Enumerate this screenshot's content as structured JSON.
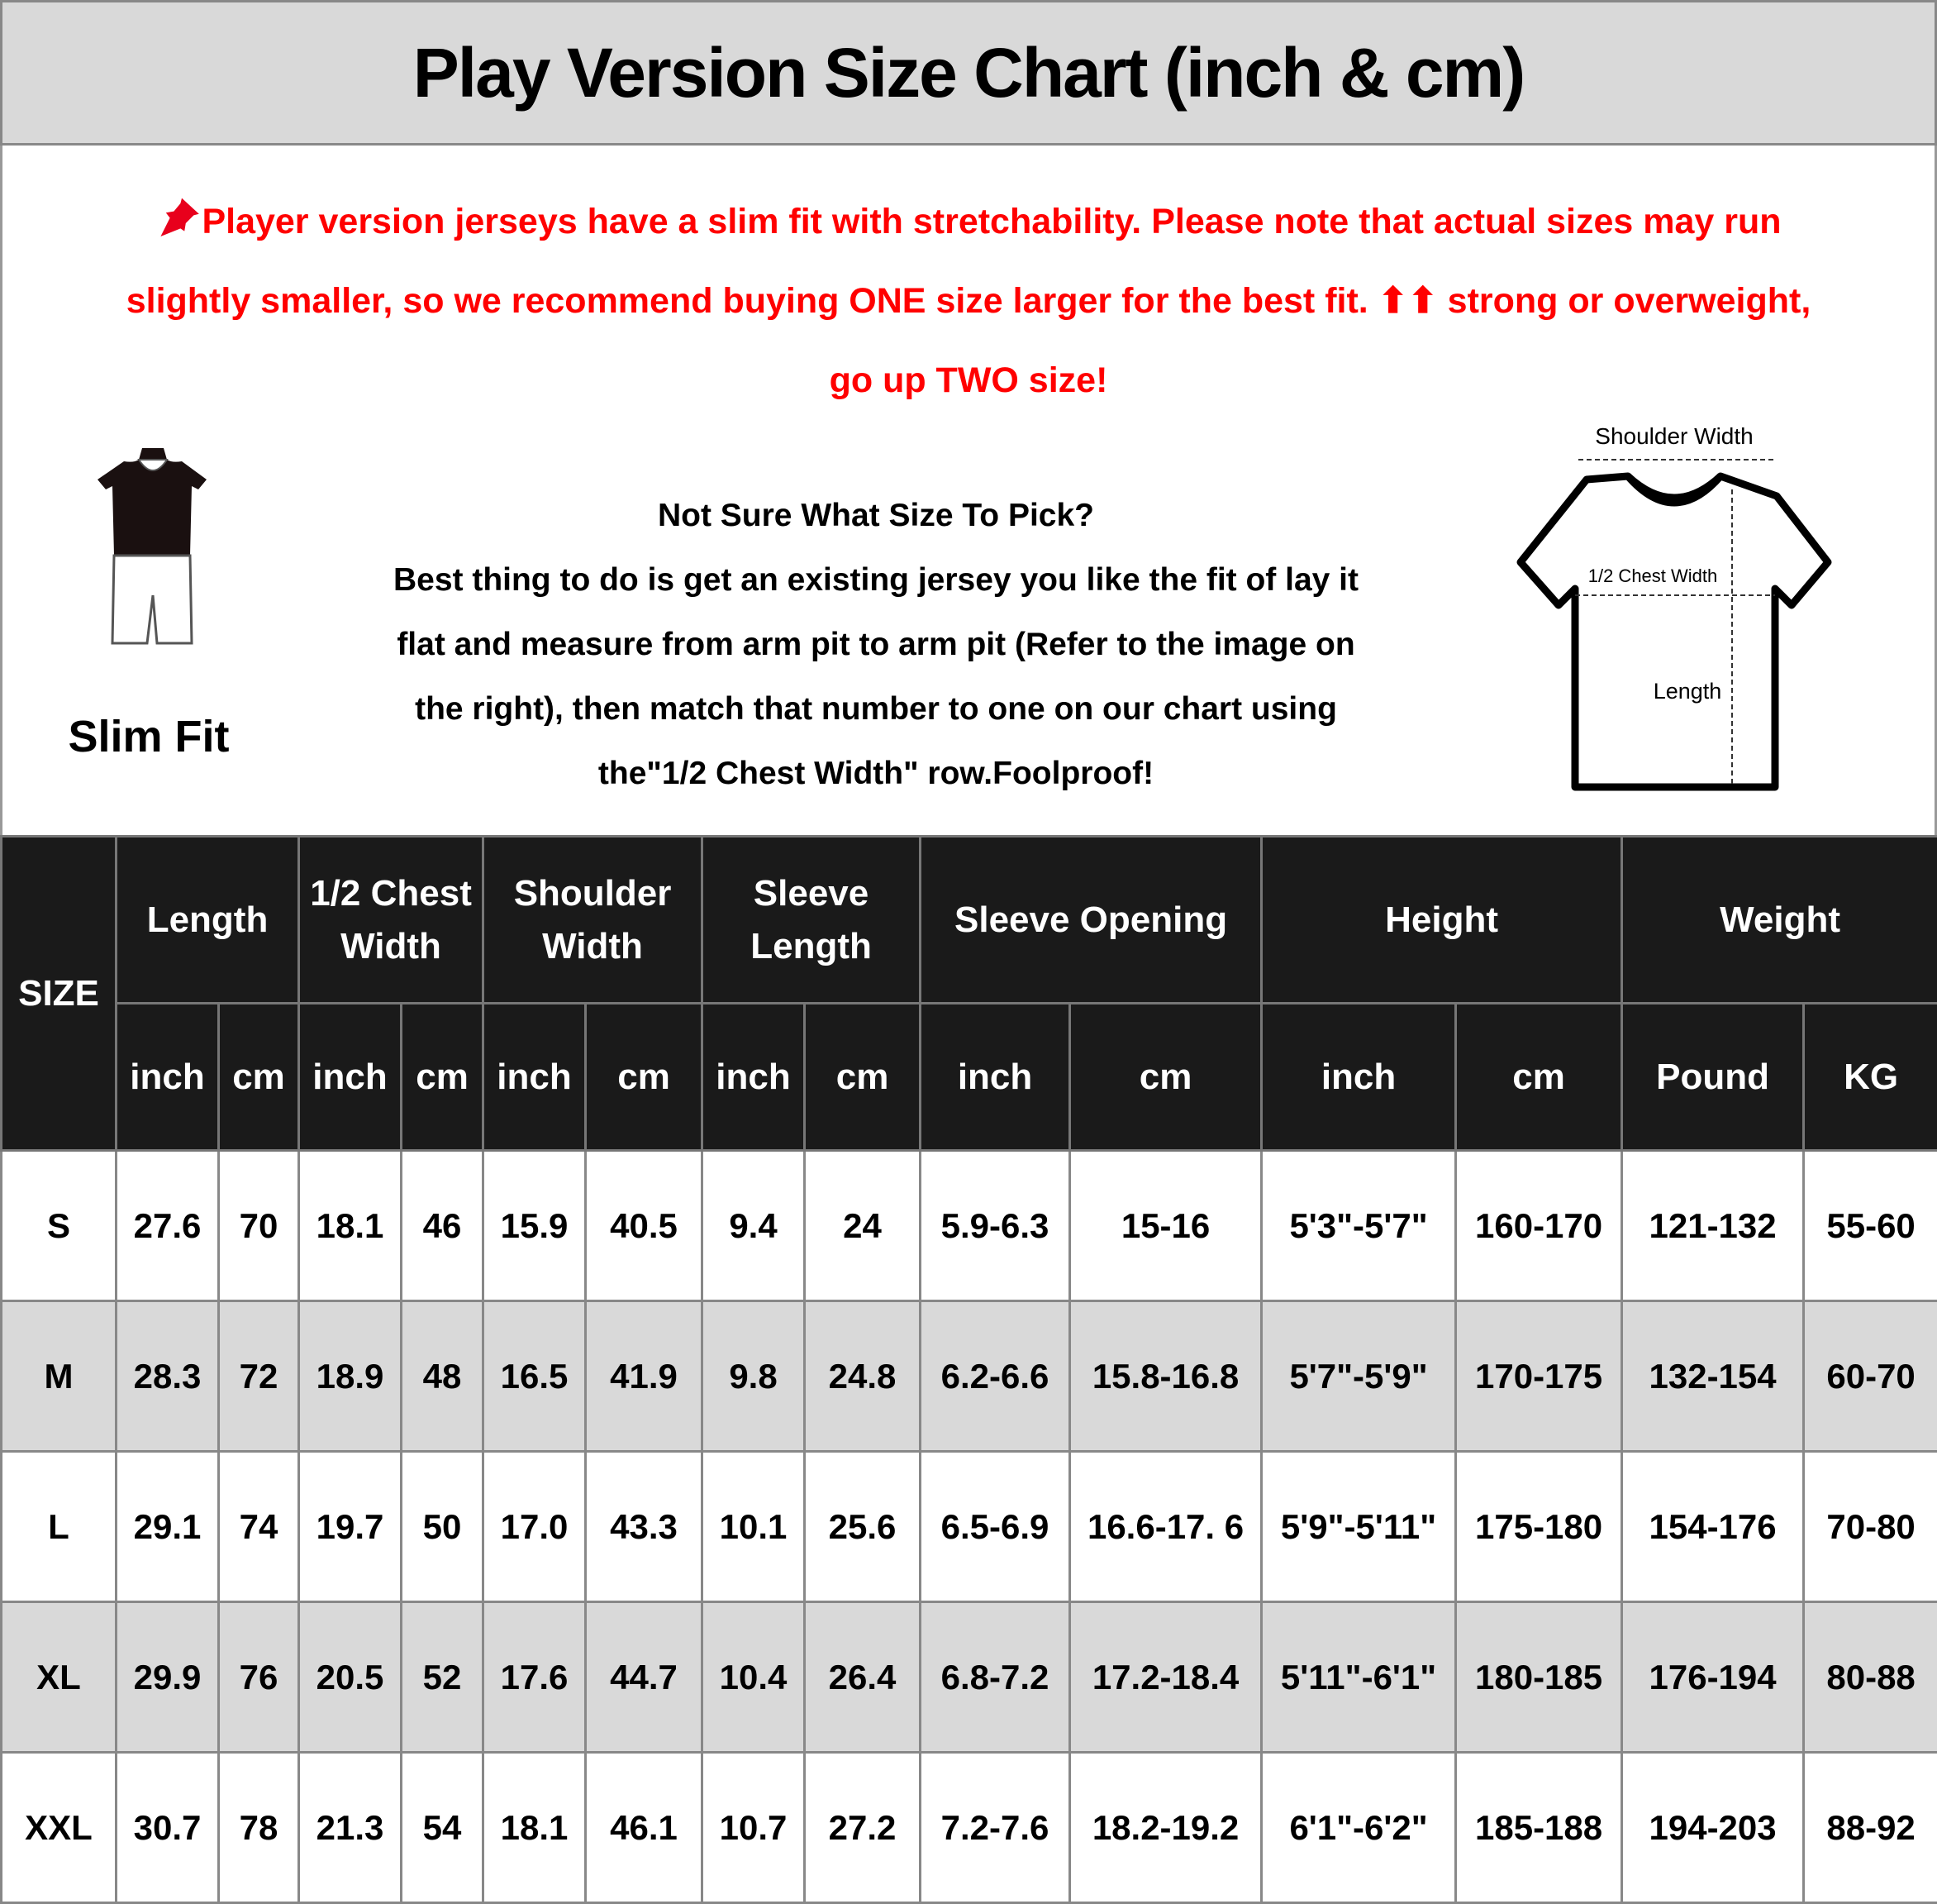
{
  "title": "Play Version Size Chart (inch & cm)",
  "notice": {
    "icon": "pushpin-icon",
    "color": "#ff0000",
    "lines": [
      "Player version jerseys have a slim fit with stretchability. Please note that actual sizes may run",
      "slightly smaller, so we recommend buying ONE size larger for the best fit. ⬆⬆ strong or overweight,",
      "go up TWO size!"
    ]
  },
  "fit": {
    "label": "Slim Fit",
    "icon": "slim-fit-mannequin-icon"
  },
  "advice": {
    "lines": [
      "Not Sure What Size To Pick?",
      "Best thing to do is get an existing jersey you like the fit of lay it",
      "flat and measure from arm pit to arm pit (Refer to the image on",
      "the right), then match that number to one on our chart using",
      "the\"1/2 Chest Width\" row.Foolproof!"
    ]
  },
  "diagram": {
    "shoulder": "Shoulder Width",
    "chest": "1/2 Chest Width",
    "length": "Length"
  },
  "table": {
    "size_header": "SIZE",
    "groups": [
      [
        "Length"
      ],
      [
        "1/2 Chest",
        "Width"
      ],
      [
        "Shoulder",
        "Width"
      ],
      [
        "Sleeve",
        "Length"
      ],
      [
        "Sleeve Opening"
      ],
      [
        "Height"
      ],
      [
        "Weight"
      ]
    ],
    "units": [
      "inch",
      "cm",
      "inch",
      "cm",
      "inch",
      "cm",
      "inch",
      "cm",
      "inch",
      "cm",
      "inch",
      "cm",
      "Pound",
      "KG"
    ],
    "rows": [
      [
        "S",
        "27.6",
        "70",
        "18.1",
        "46",
        "15.9",
        "40.5",
        "9.4",
        "24",
        "5.9-6.3",
        "15-16",
        "5'3\"-5'7\"",
        "160-170",
        "121-132",
        "55-60"
      ],
      [
        "M",
        "28.3",
        "72",
        "18.9",
        "48",
        "16.5",
        "41.9",
        "9.8",
        "24.8",
        "6.2-6.6",
        "15.8-16.8",
        "5'7\"-5'9\"",
        "170-175",
        "132-154",
        "60-70"
      ],
      [
        "L",
        "29.1",
        "74",
        "19.7",
        "50",
        "17.0",
        "43.3",
        "10.1",
        "25.6",
        "6.5-6.9",
        "16.6-17. 6",
        "5'9\"-5'11\"",
        "175-180",
        "154-176",
        "70-80"
      ],
      [
        "XL",
        "29.9",
        "76",
        "20.5",
        "52",
        "17.6",
        "44.7",
        "10.4",
        "26.4",
        "6.8-7.2",
        "17.2-18.4",
        "5'11\"-6'1\"",
        "180-185",
        "176-194",
        "80-88"
      ],
      [
        "XXL",
        "30.7",
        "78",
        "21.3",
        "54",
        "18.1",
        "46.1",
        "10.7",
        "27.2",
        "7.2-7.6",
        "18.2-19.2",
        "6'1\"-6'2\"",
        "185-188",
        "194-203",
        "88-92"
      ]
    ]
  }
}
